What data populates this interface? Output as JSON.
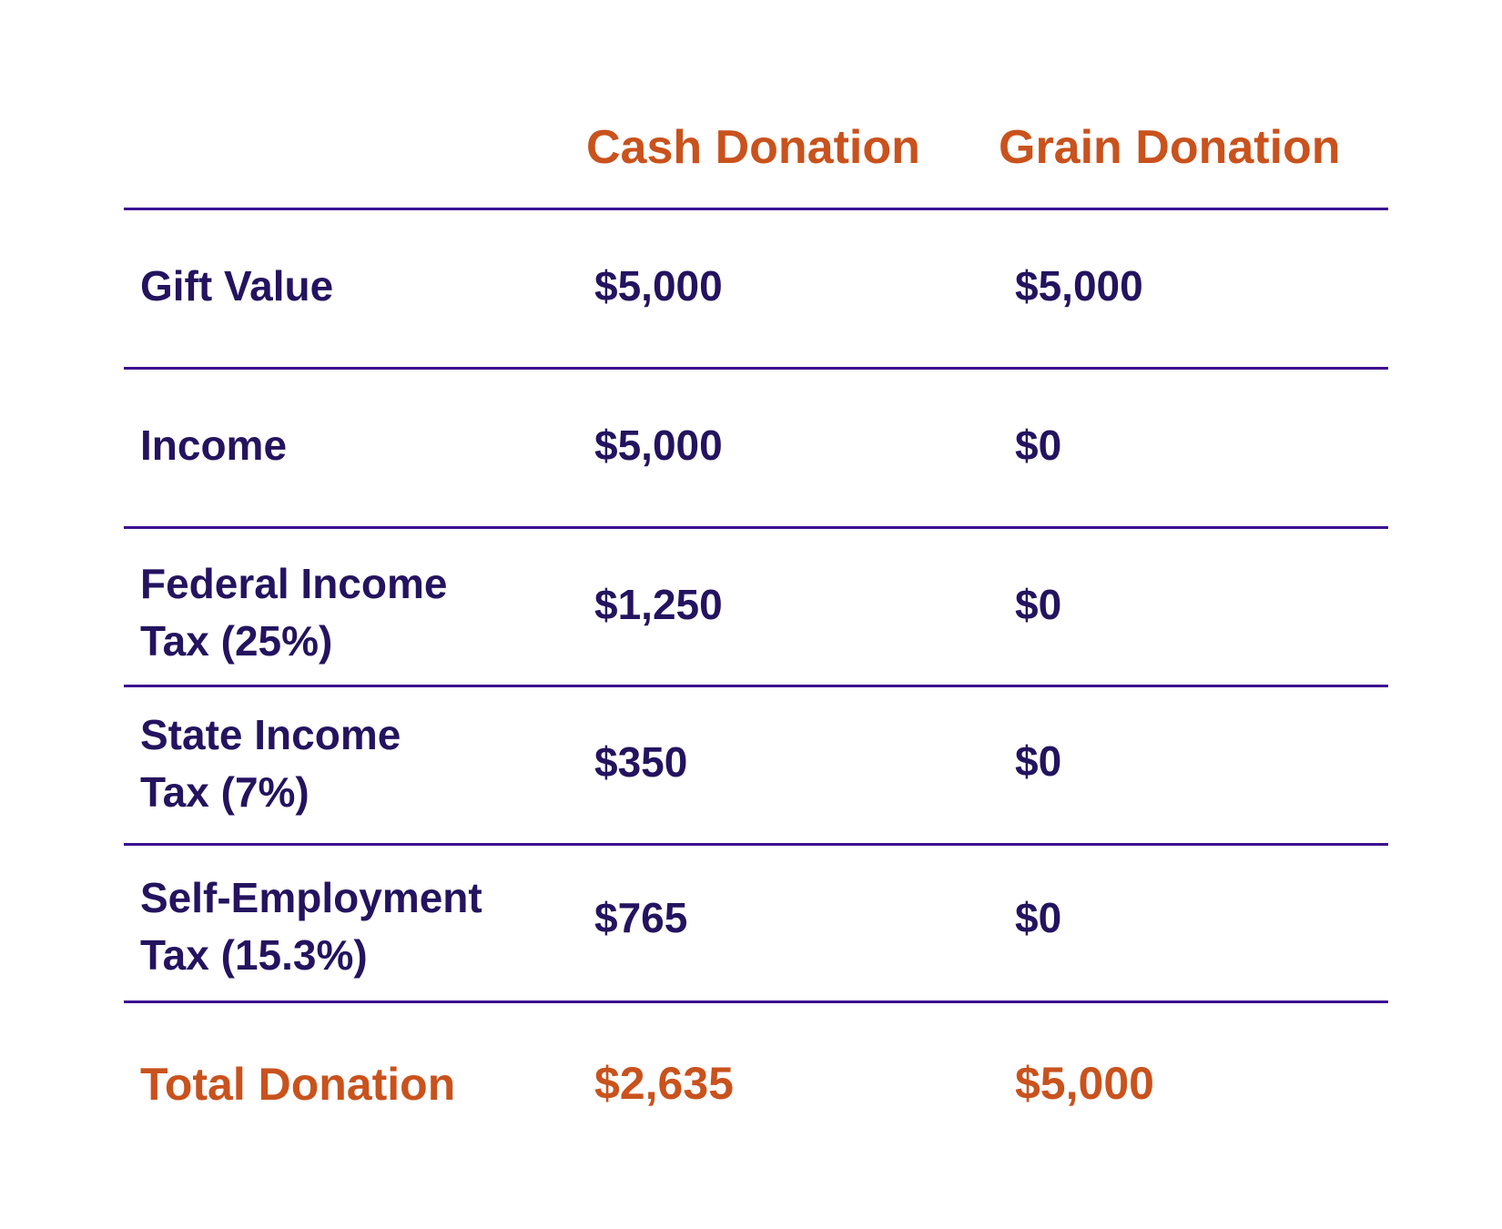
{
  "chart_data": {
    "type": "table",
    "columns": [
      "",
      "Cash Donation",
      "Grain Donation"
    ],
    "rows": [
      {
        "label_line1": "Gift Value",
        "label_line2": "",
        "cash": "$5,000",
        "grain": "$5,000"
      },
      {
        "label_line1": "Income",
        "label_line2": "",
        "cash": "$5,000",
        "grain": "$0"
      },
      {
        "label_line1": "Federal Income",
        "label_line2": "Tax (25%)",
        "cash": "$1,250",
        "grain": "$0"
      },
      {
        "label_line1": "State Income",
        "label_line2": "Tax (7%)",
        "cash": "$350",
        "grain": "$0"
      },
      {
        "label_line1": "Self-Employment",
        "label_line2": "Tax (15.3%)",
        "cash": "$765",
        "grain": "$0"
      }
    ],
    "total": {
      "label": "Total Donation",
      "cash": "$2,635",
      "grain": "$5,000"
    }
  },
  "colors": {
    "accent": "#c9521d",
    "text": "#24135f",
    "rule": "#3b0d8f"
  }
}
